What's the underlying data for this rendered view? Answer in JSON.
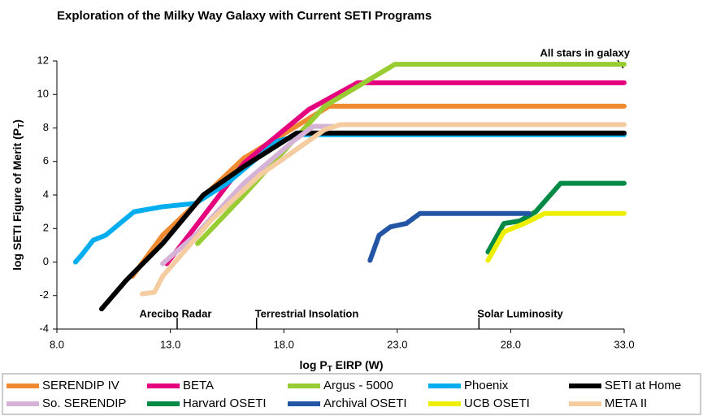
{
  "chart_data": {
    "type": "line",
    "title": "Exploration of the Milky Way Galaxy with Current SETI Programs",
    "xlabel": {
      "before": "log P",
      "sub": "T",
      "after": " EIRP (W)"
    },
    "ylabel": {
      "before": "log SETI Figure of Merit (P",
      "sub": "T",
      "after": ")"
    },
    "xlim": [
      8,
      33
    ],
    "ylim": [
      -4,
      12
    ],
    "xticks": [
      {
        "value": 8,
        "label": "8.0"
      },
      {
        "value": 13,
        "label": "13.0"
      },
      {
        "value": 18,
        "label": "18.0"
      },
      {
        "value": 23,
        "label": "23.0"
      },
      {
        "value": 28,
        "label": "28.0"
      },
      {
        "value": 33,
        "label": "33.0"
      }
    ],
    "yticks": [
      -4,
      -2,
      0,
      2,
      4,
      6,
      8,
      10,
      12
    ],
    "annotations": [
      {
        "text": "Arecibo Radar",
        "x": 13.3
      },
      {
        "text": "Terrestrial Insolation",
        "x": 16.8
      },
      {
        "text": "Solar Luminosity",
        "x": 26.6
      }
    ],
    "top_annotation": "All stars in galaxy",
    "series": [
      {
        "name": "SERENDIP IV",
        "color": "#f08a30",
        "x": [
          11.33,
          12.66,
          16.24,
          20.0,
          33
        ],
        "values": [
          -0.85,
          1.6,
          6.2,
          9.3,
          9.3
        ]
      },
      {
        "name": "BETA",
        "color": "#e5007d",
        "x": [
          12.84,
          14.1,
          16.24,
          19.1,
          21.26,
          33
        ],
        "values": [
          -0.1,
          2.1,
          5.9,
          9.1,
          10.7,
          10.7
        ]
      },
      {
        "name": "Argus - 5000",
        "color": "#99cc33",
        "x": [
          14.2,
          16.24,
          19.8,
          22.9,
          33
        ],
        "values": [
          1.1,
          4.0,
          9.3,
          11.8,
          11.8
        ]
      },
      {
        "name": "Phoenix",
        "color": "#00aeef",
        "x": [
          8.82,
          9.08,
          9.6,
          10.15,
          11.4,
          12.66,
          14.1,
          15.5,
          17.7,
          18.75,
          33
        ],
        "values": [
          0,
          0.4,
          1.3,
          1.6,
          3.0,
          3.3,
          3.5,
          4.7,
          7.2,
          7.6,
          7.6
        ]
      },
      {
        "name": "SETI at Home",
        "color": "#000000",
        "x": [
          9.97,
          11.05,
          12.66,
          14.45,
          16.24,
          18.57,
          33
        ],
        "values": [
          -2.8,
          -1.1,
          1.1,
          4.0,
          5.7,
          7.7,
          7.7
        ]
      },
      {
        "name": "So. SERENDIP",
        "color": "#d6b3d6",
        "x": [
          12.66,
          14.1,
          16.24,
          18.4,
          19.3,
          20.2
        ],
        "values": [
          -0.1,
          1.6,
          4.7,
          7.2,
          8.1,
          8.1
        ]
      },
      {
        "name": "Harvard OSETI",
        "color": "#008a45",
        "x": [
          27.0,
          27.7,
          28.4,
          29.1,
          30.2,
          33
        ],
        "values": [
          0.6,
          2.3,
          2.45,
          3.0,
          4.7,
          4.7
        ]
      },
      {
        "name": "Archival OSETI",
        "color": "#2255a4",
        "x": [
          21.8,
          22.2,
          22.7,
          23.4,
          24.0,
          28.8
        ],
        "values": [
          0.1,
          1.6,
          2.1,
          2.3,
          2.9,
          2.9
        ]
      },
      {
        "name": "UCB OSETI",
        "color": "#eeee00",
        "x": [
          27.0,
          27.7,
          28.6,
          29.5,
          33
        ],
        "values": [
          0.1,
          1.8,
          2.3,
          2.9,
          2.9
        ]
      },
      {
        "name": "META II",
        "color": "#f5cba0",
        "x": [
          11.76,
          12.3,
          12.66,
          14.8,
          16.96,
          19.8,
          20.5,
          33
        ],
        "values": [
          -1.9,
          -1.8,
          -0.85,
          2.5,
          5.2,
          7.9,
          8.2,
          8.2
        ]
      }
    ]
  }
}
